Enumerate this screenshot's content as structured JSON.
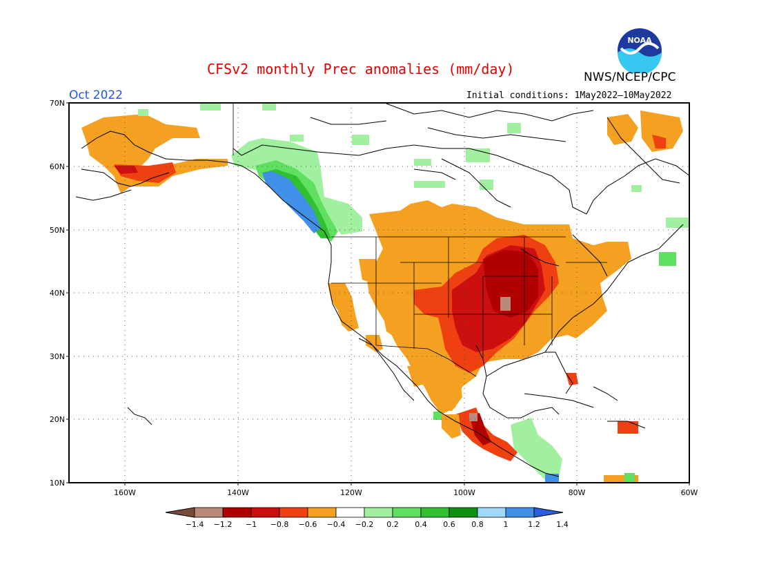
{
  "title": "CFSv2 monthly Prec anomalies (mm/day)",
  "agency": "NWS/NCEP/CPC",
  "logo_text": "NOAA",
  "valid_month": "Oct 2022",
  "initial_conditions": "Initial conditions: 1May2022–10May2022",
  "lat_labels": [
    "70N",
    "60N",
    "50N",
    "40N",
    "30N",
    "20N",
    "10N"
  ],
  "lon_labels": [
    "160W",
    "140W",
    "120W",
    "100W",
    "80W",
    "60W"
  ],
  "colorbar": {
    "tick_labels": [
      "−1.4",
      "−1.2",
      "−1",
      "−0.8",
      "−0.6",
      "−0.4",
      "−0.2",
      "0.2",
      "0.4",
      "0.6",
      "0.8",
      "1",
      "1.2",
      "1.4"
    ],
    "colors": [
      "#7a4a3a",
      "#b98a7a",
      "#b00000",
      "#cc1010",
      "#ee4010",
      "#f4a020",
      "#ffffff",
      "#a0f0a0",
      "#60e060",
      "#30c030",
      "#109010",
      "#a0d8f8",
      "#4090e8",
      "#2860e0"
    ]
  },
  "regions_colors": {
    "dry_light": "#f4a020",
    "dry_mod": "#ee4010",
    "dry_strong": "#cc1010",
    "dry_xstrong": "#b00000",
    "dry_brown": "#b98a7a",
    "wet_light": "#a0f0a0",
    "wet_mod": "#60e060",
    "wet_strong": "#30c030",
    "wet_xstrong": "#109010",
    "wet_blue": "#4090e8"
  }
}
